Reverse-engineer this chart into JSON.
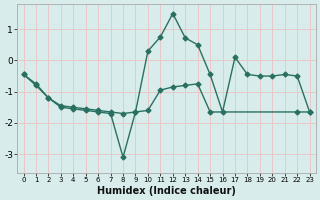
{
  "xlabel": "Humidex (Indice chaleur)",
  "ylabel": "",
  "xlim": [
    -0.5,
    23.5
  ],
  "ylim": [
    -3.6,
    1.8
  ],
  "yticks": [
    -3,
    -2,
    -1,
    0,
    1
  ],
  "xticks": [
    0,
    1,
    2,
    3,
    4,
    5,
    6,
    7,
    8,
    9,
    10,
    11,
    12,
    13,
    14,
    15,
    16,
    17,
    18,
    19,
    20,
    21,
    22,
    23
  ],
  "bg_color": "#d8ecec",
  "grid_color": "#e8c8c8",
  "line_color": "#2a7060",
  "line1_x": [
    0,
    1,
    2,
    3,
    4,
    5,
    6,
    7,
    8,
    9,
    10,
    11,
    12,
    13,
    14,
    15,
    16,
    17,
    18,
    19,
    20,
    21,
    22,
    23
  ],
  "line1_y": [
    -0.45,
    -0.8,
    -1.2,
    -1.5,
    -1.55,
    -1.6,
    -1.65,
    -1.7,
    -3.1,
    -1.65,
    0.3,
    0.75,
    1.5,
    0.72,
    0.5,
    -0.45,
    -1.65,
    0.1,
    -0.45,
    -0.5,
    -0.5,
    -0.45,
    -0.5,
    -1.65
  ],
  "line2_x": [
    0,
    1,
    2,
    3,
    4,
    5,
    6,
    7,
    8,
    9,
    10,
    11,
    12,
    13,
    14,
    15,
    22,
    23
  ],
  "line2_y": [
    -0.45,
    -0.75,
    -1.2,
    -1.45,
    -1.5,
    -1.55,
    -1.6,
    -1.65,
    -1.7,
    -1.65,
    -1.6,
    -0.95,
    -0.85,
    -0.8,
    -0.75,
    -1.65,
    -1.65,
    -1.65
  ],
  "marker": "D",
  "marker_size": 2.5,
  "linewidth": 1.0
}
